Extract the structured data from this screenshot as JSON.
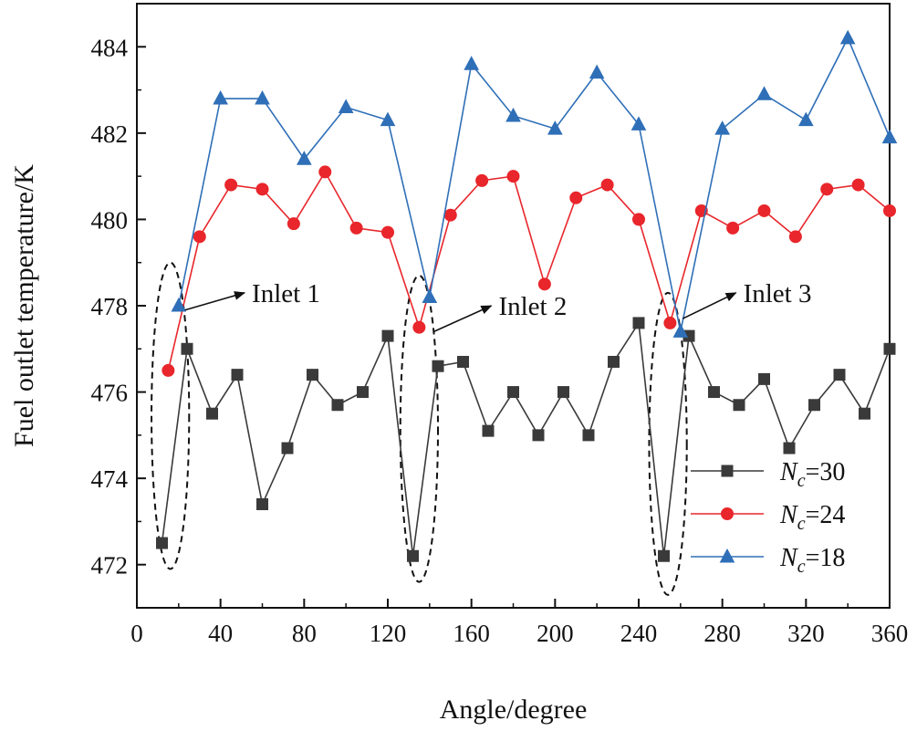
{
  "chart_data": {
    "type": "line",
    "title": "",
    "xlabel": "Angle/degree",
    "ylabel": "Fuel outlet temperature/K",
    "xlim": [
      0,
      360
    ],
    "ylim": [
      471,
      485
    ],
    "xticks": [
      0,
      40,
      80,
      120,
      160,
      200,
      240,
      280,
      320,
      360
    ],
    "yticks": [
      472,
      474,
      476,
      478,
      480,
      482,
      484
    ],
    "grid": false,
    "legend_position": "bottom-right",
    "series": [
      {
        "name": "Nc=30",
        "legend_symbol": "N",
        "legend_subscript": "c",
        "legend_value": "=30",
        "color": "#3a3a3a",
        "marker": "square",
        "x": [
          12,
          24,
          36,
          48,
          60,
          72,
          84,
          96,
          108,
          120,
          132,
          144,
          156,
          168,
          180,
          192,
          204,
          216,
          228,
          240,
          252,
          264,
          276,
          288,
          300,
          312,
          324,
          336,
          348,
          360
        ],
        "y": [
          472.5,
          477.0,
          475.5,
          476.4,
          473.4,
          474.7,
          476.4,
          475.7,
          476.0,
          477.3,
          472.2,
          476.6,
          476.7,
          475.1,
          476.0,
          475.0,
          476.0,
          475.0,
          476.7,
          477.6,
          472.2,
          477.3,
          476.0,
          475.7,
          476.3,
          474.7,
          475.7,
          476.4,
          475.5,
          477.0
        ]
      },
      {
        "name": "Nc=24",
        "legend_symbol": "N",
        "legend_subscript": "c",
        "legend_value": "=24",
        "color": "#e8262b",
        "marker": "circle",
        "x": [
          15,
          30,
          45,
          60,
          75,
          90,
          105,
          120,
          135,
          150,
          165,
          180,
          195,
          210,
          225,
          240,
          255,
          270,
          285,
          300,
          315,
          330,
          345,
          360
        ],
        "y": [
          476.5,
          479.6,
          480.8,
          480.7,
          479.9,
          481.1,
          479.8,
          479.7,
          477.5,
          480.1,
          480.9,
          481.0,
          478.5,
          480.5,
          480.8,
          480.0,
          477.6,
          480.2,
          479.8,
          480.2,
          479.6,
          480.7,
          480.8,
          480.2
        ]
      },
      {
        "name": "Nc=18",
        "legend_symbol": "N",
        "legend_subscript": "c",
        "legend_value": "=18",
        "color": "#2f6fb7",
        "marker": "triangle",
        "x": [
          20,
          40,
          60,
          80,
          100,
          120,
          140,
          160,
          180,
          200,
          220,
          240,
          260,
          280,
          300,
          320,
          340,
          360
        ],
        "y": [
          478.0,
          482.8,
          482.8,
          481.4,
          482.6,
          482.3,
          478.2,
          483.6,
          482.4,
          482.1,
          483.4,
          482.2,
          477.4,
          482.1,
          482.9,
          482.3,
          484.2,
          481.9
        ]
      }
    ],
    "annotations": [
      {
        "text": "Inlet 1",
        "target_x": 23,
        "target_y": 477.9,
        "label_x": 55,
        "label_y": 478.3
      },
      {
        "text": "Inlet 2",
        "target_x": 142,
        "target_y": 477.4,
        "label_x": 173,
        "label_y": 478.0
      },
      {
        "text": "Inlet 3",
        "target_x": 261,
        "target_y": 477.7,
        "label_x": 290,
        "label_y": 478.3
      }
    ],
    "highlight_regions": [
      {
        "x_min": 7,
        "x_max": 25,
        "y_min": 471.9,
        "y_max": 479.0
      },
      {
        "x_min": 126,
        "x_max": 144,
        "y_min": 471.6,
        "y_max": 478.7
      },
      {
        "x_min": 245,
        "x_max": 263,
        "y_min": 471.3,
        "y_max": 478.3
      }
    ]
  }
}
